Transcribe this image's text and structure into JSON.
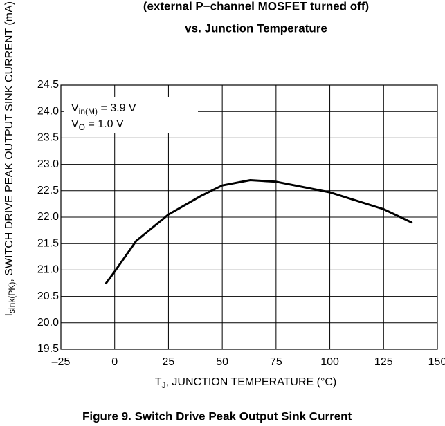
{
  "chart_data": {
    "type": "line",
    "title_lines": [
      "(external P−channel MOSFET turned off)",
      "vs. Junction Temperature"
    ],
    "y_label": {
      "main": "I",
      "sub": "sink(PK)",
      "rest": ", SWITCH DRIVE PEAK OUTPUT SINK CURRENT (mA)"
    },
    "x_label": {
      "main": "T",
      "sub": "J",
      "rest": ", JUNCTION TEMPERATURE (°C)"
    },
    "annotations": [
      {
        "main": "V",
        "sub": "in(M)",
        "rest": " = 3.9 V"
      },
      {
        "main": "V",
        "sub": "O",
        "rest": " = 1.0 V"
      }
    ],
    "caption": "Figure 9. Switch Drive Peak Output Sink Current",
    "x": [
      -4,
      0,
      10,
      25,
      40,
      50,
      63,
      75,
      100,
      125,
      138
    ],
    "values": [
      20.75,
      20.97,
      21.55,
      22.05,
      22.4,
      22.6,
      22.7,
      22.67,
      22.47,
      22.15,
      21.9
    ],
    "color": "#000000",
    "xlim": [
      -25,
      150
    ],
    "xticks": [
      {
        "value": -25,
        "label": "–25"
      },
      0,
      25,
      50,
      75,
      100,
      125,
      150
    ],
    "ylim": [
      19.5,
      24.5
    ],
    "yticks": [
      {
        "value": 19.5,
        "label": "19.5"
      },
      {
        "value": 20,
        "label": "20.0"
      },
      {
        "value": 20.5,
        "label": "20.5"
      },
      {
        "value": 21,
        "label": "21.0"
      },
      {
        "value": 21.5,
        "label": "21.5"
      },
      {
        "value": 22,
        "label": "22.0"
      },
      {
        "value": 22.5,
        "label": "22.5"
      },
      {
        "value": 23,
        "label": "23.0"
      },
      {
        "value": 23.5,
        "label": "23.5"
      },
      {
        "value": 24,
        "label": "24.0"
      },
      {
        "value": 24.5,
        "label": "24.5"
      }
    ],
    "grid": true
  }
}
